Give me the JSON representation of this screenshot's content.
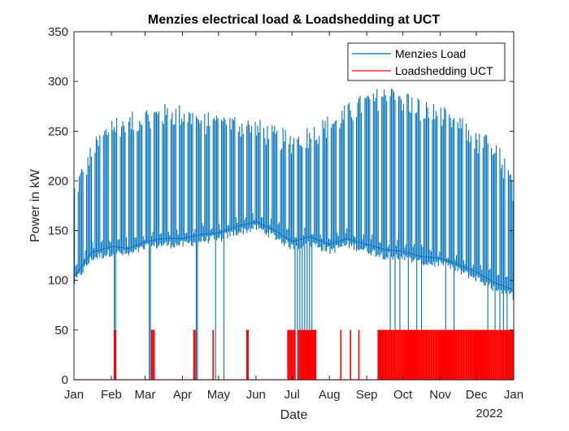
{
  "chart_data": {
    "type": "line",
    "title": "Menzies electrical load & Loadshedding at UCT",
    "xlabel": "Date",
    "ylabel": "Power in kW",
    "xlim": [
      "2021-01-01",
      "2022-01-01"
    ],
    "ylim": [
      0,
      350
    ],
    "yticks": [
      0,
      50,
      100,
      150,
      200,
      250,
      300,
      350
    ],
    "xtick_labels": [
      "Jan",
      "Feb",
      "Mar",
      "Apr",
      "May",
      "Jun",
      "Jul",
      "Aug",
      "Sep",
      "Oct",
      "Nov",
      "Dec",
      "Jan"
    ],
    "year_label": "2022",
    "grid": false,
    "legend_location": "top-right",
    "series": [
      {
        "name": "Menzies Load",
        "color": "#0072BD",
        "style": "daily min/max envelope",
        "weekday_peak": {
          "date": [
            "2021-01-01",
            "2021-01-15",
            "2021-02-01",
            "2021-02-15",
            "2021-03-01",
            "2021-03-15",
            "2021-04-01",
            "2021-04-15",
            "2021-05-01",
            "2021-05-15",
            "2021-06-01",
            "2021-06-15",
            "2021-07-01",
            "2021-07-15",
            "2021-08-01",
            "2021-08-15",
            "2021-09-01",
            "2021-09-15",
            "2021-10-01",
            "2021-10-15",
            "2021-11-01",
            "2021-11-15",
            "2021-12-01",
            "2021-12-15",
            "2022-01-01"
          ],
          "value": [
            195,
            232,
            262,
            262,
            270,
            272,
            272,
            265,
            262,
            262,
            258,
            250,
            245,
            250,
            262,
            272,
            285,
            290,
            288,
            278,
            270,
            262,
            243,
            242,
            195
          ]
        },
        "night_base": {
          "date": [
            "2021-01-01",
            "2021-01-15",
            "2021-02-01",
            "2021-02-15",
            "2021-03-01",
            "2021-03-15",
            "2021-04-01",
            "2021-04-15",
            "2021-05-01",
            "2021-05-15",
            "2021-06-01",
            "2021-06-15",
            "2021-07-01",
            "2021-07-15",
            "2021-08-01",
            "2021-08-15",
            "2021-09-01",
            "2021-09-15",
            "2021-10-01",
            "2021-10-15",
            "2021-11-01",
            "2021-11-15",
            "2021-12-01",
            "2021-12-15",
            "2022-01-01"
          ],
          "value": [
            98,
            122,
            128,
            126,
            133,
            136,
            136,
            140,
            142,
            148,
            153,
            145,
            133,
            138,
            130,
            136,
            130,
            125,
            123,
            118,
            116,
            110,
            102,
            92,
            84
          ]
        },
        "dropouts_to_zero": [
          "2021-02-03",
          "2021-02-04",
          "2021-03-04",
          "2021-03-05",
          "2021-04-12",
          "2021-04-13",
          "2021-04-28",
          "2021-05-05",
          "2021-07-03",
          "2021-07-05",
          "2021-07-07",
          "2021-07-09",
          "2021-07-11",
          "2021-07-13",
          "2021-07-15",
          "2021-07-17",
          "2021-09-20",
          "2021-09-24",
          "2021-09-28",
          "2021-10-05",
          "2021-10-12",
          "2021-10-16",
          "2021-11-05",
          "2021-11-12",
          "2021-12-10",
          "2021-12-16",
          "2021-12-20",
          "2021-12-23",
          "2021-12-26"
        ]
      },
      {
        "name": "Loadshedding UCT",
        "color": "#FF0000",
        "style": "step 0 / 50 kW",
        "on_value": 50,
        "on_days": [
          "2021-02-03",
          "2021-02-04",
          "2021-03-06",
          "2021-03-07",
          "2021-03-08",
          "2021-04-10",
          "2021-04-11",
          "2021-04-26",
          "2021-05-24",
          "2021-05-25",
          "2021-06-27",
          "2021-06-28",
          "2021-06-29",
          "2021-06-30",
          "2021-07-01",
          "2021-07-02",
          "2021-07-03",
          "2021-07-06",
          "2021-07-07",
          "2021-07-08",
          "2021-07-09",
          "2021-07-10",
          "2021-07-11",
          "2021-07-12",
          "2021-07-13",
          "2021-07-14",
          "2021-07-15",
          "2021-07-16",
          "2021-07-17",
          "2021-07-18",
          "2021-07-19",
          "2021-07-20",
          "2021-08-10",
          "2021-08-18",
          "2021-08-25",
          "2021-09-10",
          "2021-09-11",
          "2021-09-12",
          "2021-09-13",
          "2021-09-14",
          "2021-09-15",
          "2021-09-16",
          "2021-09-17",
          "2021-09-18",
          "2021-09-19",
          "2021-09-20",
          "2021-09-21",
          "2021-09-22",
          "2021-09-23",
          "2021-09-24",
          "2021-09-25",
          "2021-09-26",
          "2021-09-27",
          "2021-09-28",
          "2021-09-29",
          "2021-09-30",
          "2021-10-01",
          "2021-10-02",
          "2021-10-03",
          "2021-10-04",
          "2021-10-05",
          "2021-10-06",
          "2021-10-07",
          "2021-10-08",
          "2021-10-09",
          "2021-10-10",
          "2021-10-11",
          "2021-10-12",
          "2021-10-13",
          "2021-10-14",
          "2021-10-15",
          "2021-10-16",
          "2021-10-17",
          "2021-10-18",
          "2021-10-19",
          "2021-10-20",
          "2021-10-21",
          "2021-10-22",
          "2021-10-23",
          "2021-10-24",
          "2021-10-25",
          "2021-10-26",
          "2021-10-27",
          "2021-10-28",
          "2021-10-29",
          "2021-10-30",
          "2021-10-31",
          "2021-11-01",
          "2021-11-02",
          "2021-11-03",
          "2021-11-04",
          "2021-11-05",
          "2021-11-06",
          "2021-11-07",
          "2021-11-08",
          "2021-11-09",
          "2021-11-10",
          "2021-11-11",
          "2021-11-12",
          "2021-11-13",
          "2021-11-14",
          "2021-11-15",
          "2021-11-16",
          "2021-11-17",
          "2021-11-18",
          "2021-11-19",
          "2021-11-20",
          "2021-11-21",
          "2021-11-22",
          "2021-11-23",
          "2021-11-24",
          "2021-11-25",
          "2021-11-26",
          "2021-11-27",
          "2021-11-28",
          "2021-11-29",
          "2021-11-30",
          "2021-12-01",
          "2021-12-02",
          "2021-12-03",
          "2021-12-04",
          "2021-12-05",
          "2021-12-06",
          "2021-12-07",
          "2021-12-08",
          "2021-12-09",
          "2021-12-10",
          "2021-12-11",
          "2021-12-12",
          "2021-12-13",
          "2021-12-14",
          "2021-12-15",
          "2021-12-16",
          "2021-12-17",
          "2021-12-18",
          "2021-12-19",
          "2021-12-20",
          "2021-12-21",
          "2021-12-22",
          "2021-12-23",
          "2021-12-24",
          "2021-12-25",
          "2021-12-26",
          "2021-12-27",
          "2021-12-28",
          "2021-12-29",
          "2021-12-30",
          "2021-12-31"
        ]
      }
    ]
  }
}
